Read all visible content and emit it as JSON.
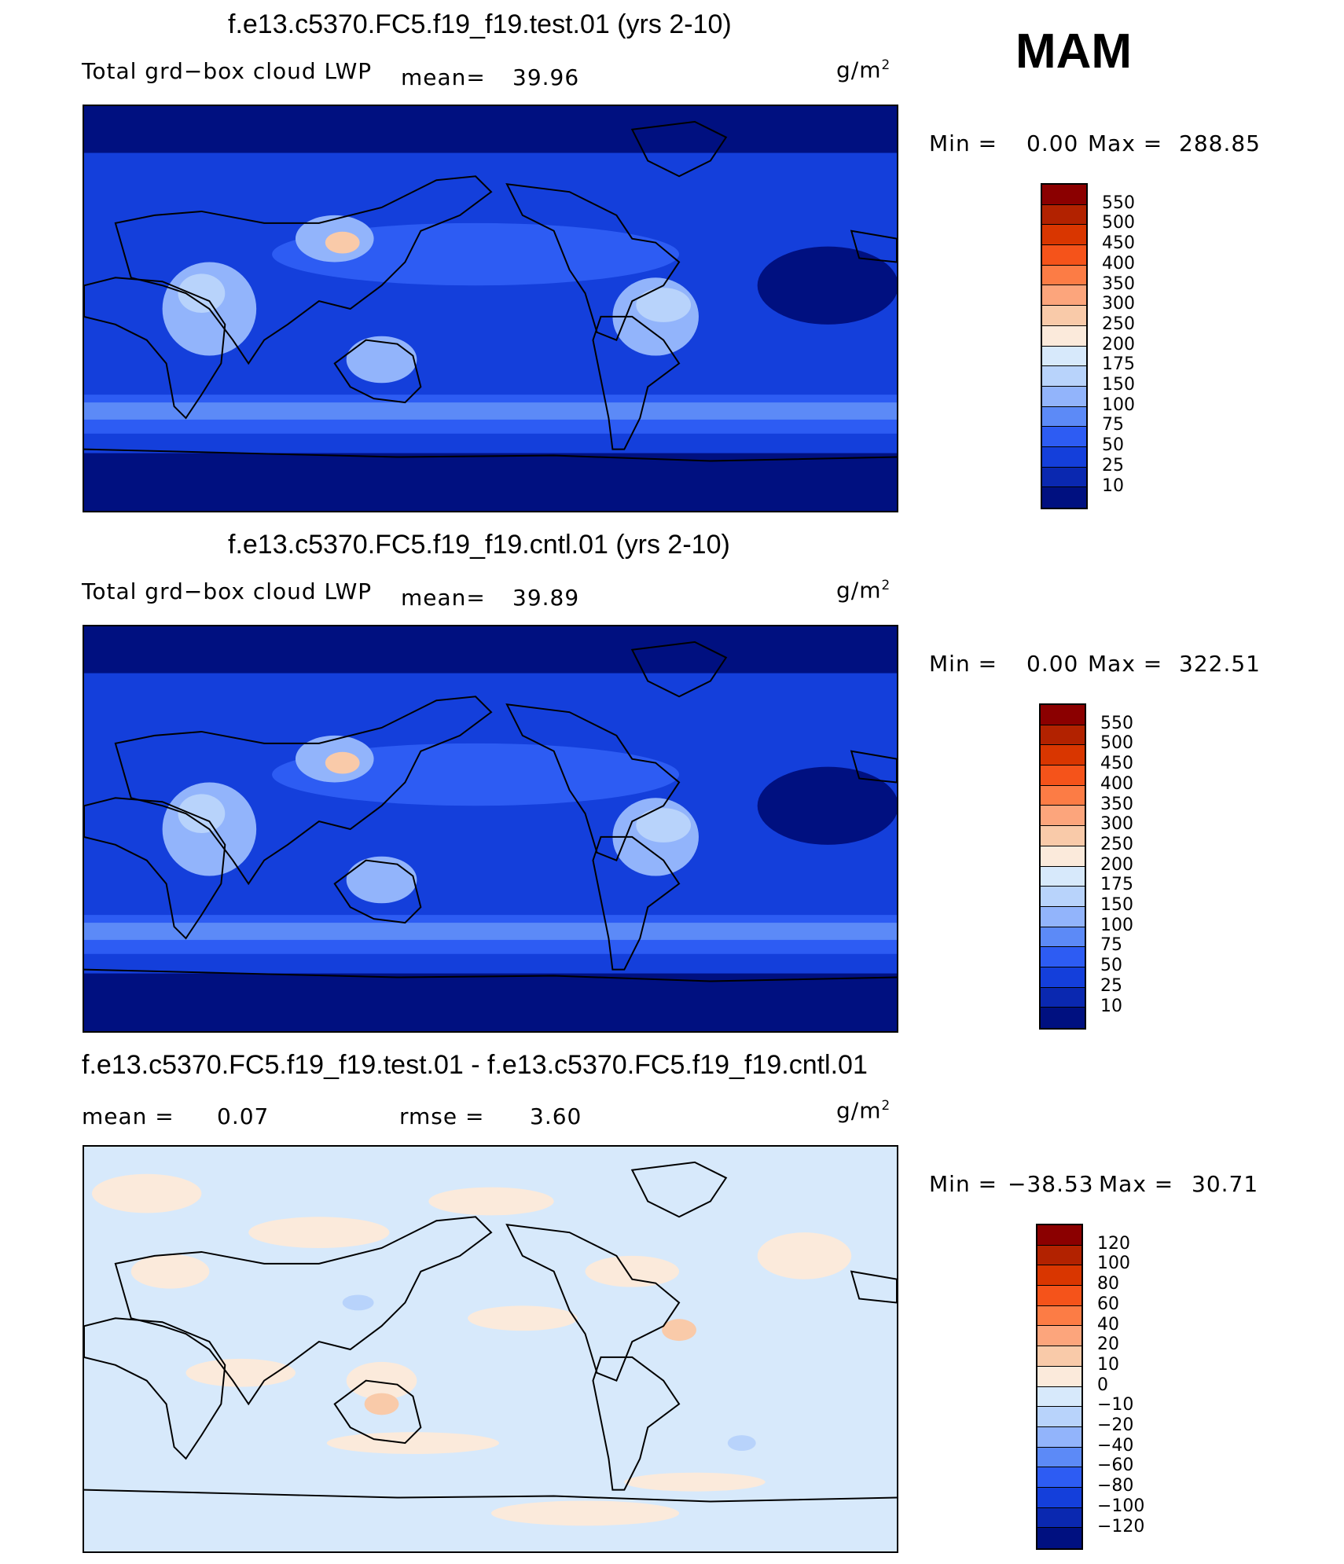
{
  "season": "MAM",
  "panels": [
    {
      "id": "test",
      "title": "f.e13.c5370.FC5.f19_f19.test.01 (yrs 2-10)",
      "left_label": "Total grd−box cloud LWP",
      "mean_label": "mean=",
      "mean_value": "39.96",
      "unit": "g/m",
      "unit_exp": "2",
      "min_label": "Min =",
      "min_value": "0.00",
      "max_label": "Max =",
      "max_value": "288.85",
      "colorbar": {
        "levels": [
          "550",
          "500",
          "450",
          "400",
          "350",
          "300",
          "250",
          "200",
          "175",
          "150",
          "100",
          "75",
          "50",
          "25",
          "10"
        ],
        "colors": [
          "#8b0000",
          "#b22200",
          "#d93600",
          "#f5531a",
          "#fc7c45",
          "#fca57c",
          "#f9caa9",
          "#fbeadb",
          "#d7e9fb",
          "#b8d3fb",
          "#92b4fb",
          "#5c8af7",
          "#2d5cf3",
          "#143fdb",
          "#0a28b0",
          "#001080"
        ]
      }
    },
    {
      "id": "cntl",
      "title": "f.e13.c5370.FC5.f19_f19.cntl.01 (yrs 2-10)",
      "left_label": "Total grd−box cloud LWP",
      "mean_label": "mean=",
      "mean_value": "39.89",
      "unit": "g/m",
      "unit_exp": "2",
      "min_label": "Min =",
      "min_value": "0.00",
      "max_label": "Max =",
      "max_value": "322.51",
      "colorbar": {
        "levels": [
          "550",
          "500",
          "450",
          "400",
          "350",
          "300",
          "250",
          "200",
          "175",
          "150",
          "100",
          "75",
          "50",
          "25",
          "10"
        ],
        "colors": [
          "#8b0000",
          "#b22200",
          "#d93600",
          "#f5531a",
          "#fc7c45",
          "#fca57c",
          "#f9caa9",
          "#fbeadb",
          "#d7e9fb",
          "#b8d3fb",
          "#92b4fb",
          "#5c8af7",
          "#2d5cf3",
          "#143fdb",
          "#0a28b0",
          "#001080"
        ]
      }
    },
    {
      "id": "diff",
      "title": "f.e13.c5370.FC5.f19_f19.test.01 - f.e13.c5370.FC5.f19_f19.cntl.01",
      "mean_label": "mean =",
      "mean_value": "0.07",
      "rmse_label": "rmse =",
      "rmse_value": "3.60",
      "unit": "g/m",
      "unit_exp": "2",
      "min_label": "Min =",
      "min_value": "−38.53",
      "max_label": "Max =",
      "max_value": "30.71",
      "colorbar": {
        "levels": [
          "120",
          "100",
          "80",
          "60",
          "40",
          "20",
          "10",
          "0",
          "−10",
          "−20",
          "−40",
          "−60",
          "−80",
          "−100",
          "−120"
        ],
        "colors": [
          "#8b0000",
          "#b22200",
          "#d93600",
          "#f5531a",
          "#fc7c45",
          "#fca57c",
          "#f9caa9",
          "#fbeadb",
          "#d7e9fb",
          "#b8d3fb",
          "#92b4fb",
          "#5c8af7",
          "#2d5cf3",
          "#143fdb",
          "#0a28b0",
          "#001080"
        ]
      }
    }
  ],
  "map_colors": {
    "ocean_base": "#143fdb",
    "high_lat": "#001080",
    "mid_band": "#2d5cf3",
    "storm_band": "#5c8af7",
    "land_light": "#92b4fb",
    "land_lighter": "#b8d3fb",
    "land_peak": "#f9caa9",
    "diff_base": "#d7e9fb",
    "diff_pos": "#fbeadb",
    "diff_pos2": "#f9caa9",
    "diff_neg": "#b8d3fb",
    "coast": "#000000"
  }
}
